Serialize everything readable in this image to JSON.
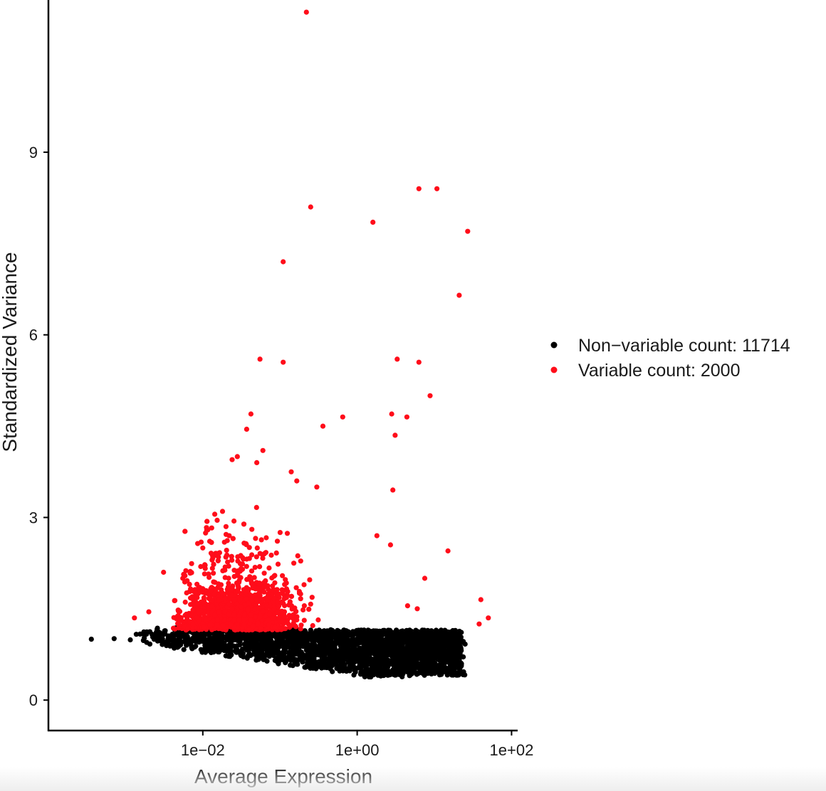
{
  "chart_data": {
    "type": "scatter",
    "xlabel": "Average Expression",
    "ylabel": "Standardized Variance",
    "x_scale": "log10",
    "xlim": [
      0.0001,
      120
    ],
    "ylim": [
      -0.5,
      11.5
    ],
    "x_ticks": [
      {
        "value": 0.01,
        "label": "1e−02"
      },
      {
        "value": 1,
        "label": "1e+00"
      },
      {
        "value": 100,
        "label": "1e+02"
      }
    ],
    "y_ticks": [
      {
        "value": 0,
        "label": "0"
      },
      {
        "value": 3,
        "label": "3"
      },
      {
        "value": 6,
        "label": "6"
      },
      {
        "value": 9,
        "label": "9"
      }
    ],
    "grid": false,
    "legend": {
      "placement": "right",
      "entries": [
        {
          "label": "Non−variable count: 11714",
          "color": "#000000"
        },
        {
          "label": "Variable count: 2000",
          "color": "#ff0d1a"
        }
      ]
    },
    "series": [
      {
        "name": "Non−variable count: 11714",
        "color": "#000000",
        "count": 11714,
        "points": [
          [
            0.00036,
            1.0
          ],
          [
            0.00071,
            1.01
          ],
          [
            0.00115,
            0.99
          ],
          [
            0.0017,
            0.98
          ],
          [
            0.0026,
            0.97
          ],
          [
            0.0035,
            0.96
          ],
          [
            6.5,
            0.9
          ],
          [
            10,
            0.95
          ],
          [
            15,
            1.05
          ],
          [
            20,
            1.02
          ],
          [
            25,
            0.92
          ],
          [
            3.5,
            0.42
          ],
          [
            1.5,
            0.38
          ]
        ]
      },
      {
        "name": "Variable count: 2000",
        "color": "#ff0d1a",
        "count": 2000,
        "points": [
          [
            0.22,
            11.3
          ],
          [
            0.25,
            8.1
          ],
          [
            6.3,
            8.4
          ],
          [
            10.8,
            8.4
          ],
          [
            1.6,
            7.85
          ],
          [
            27,
            7.7
          ],
          [
            0.11,
            7.2
          ],
          [
            21,
            6.65
          ],
          [
            0.055,
            5.6
          ],
          [
            0.11,
            5.55
          ],
          [
            3.3,
            5.6
          ],
          [
            6.3,
            5.55
          ],
          [
            8.8,
            5.0
          ],
          [
            0.042,
            4.7
          ],
          [
            2.8,
            4.7
          ],
          [
            4.4,
            4.65
          ],
          [
            0.65,
            4.65
          ],
          [
            0.36,
            4.5
          ],
          [
            0.037,
            4.45
          ],
          [
            3.1,
            4.35
          ],
          [
            0.06,
            4.1
          ],
          [
            0.028,
            4.0
          ],
          [
            0.024,
            3.95
          ],
          [
            0.05,
            3.9
          ],
          [
            0.14,
            3.75
          ],
          [
            0.165,
            3.6
          ],
          [
            2.9,
            3.45
          ],
          [
            0.3,
            3.5
          ],
          [
            0.018,
            3.1
          ],
          [
            0.02,
            2.85
          ],
          [
            1.8,
            2.7
          ],
          [
            0.01,
            2.5
          ],
          [
            2.7,
            2.55
          ],
          [
            15,
            2.45
          ],
          [
            0.0031,
            2.1
          ],
          [
            0.0055,
            2.0
          ],
          [
            7.5,
            2.0
          ],
          [
            40,
            1.65
          ],
          [
            50,
            1.35
          ],
          [
            38,
            1.25
          ],
          [
            0.0013,
            1.35
          ],
          [
            0.002,
            1.45
          ],
          [
            4.5,
            1.55
          ],
          [
            6.0,
            1.5
          ]
        ]
      }
    ]
  }
}
